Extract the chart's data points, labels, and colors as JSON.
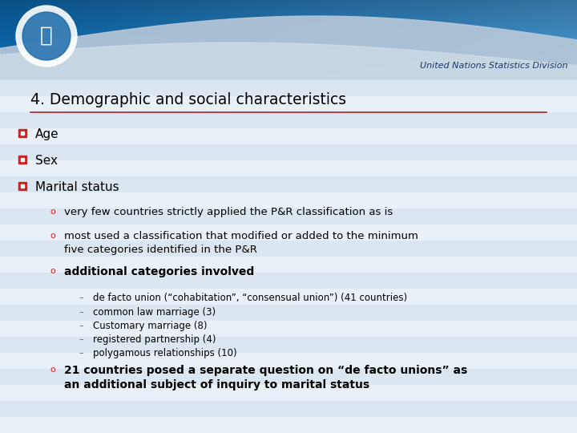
{
  "title": "4. Demographic and social characteristics",
  "header_text": "United Nations Statistics Division",
  "content_bg": "#dce6f0",
  "white_bg": "#ffffff",
  "title_color": "#000000",
  "red_color": "#cc2222",
  "sub_bullet_color": "#cc2222",
  "dash_color": "#666666",
  "text_color": "#000000",
  "level1_items": [
    "Age",
    "Sex",
    "Marital status"
  ],
  "level2_items": [
    "very few countries strictly applied the P&R classification as is",
    "most used a classification that modified or added to the minimum\nfive categories identified in the P&R",
    "additional categories involved"
  ],
  "level2_bold": [
    false,
    false,
    true
  ],
  "level3_items": [
    "de facto union (“cohabitation”, “consensual union”) (41 countries)",
    "common law marriage (3)",
    "Customary marriage (8)",
    "registered partnership (4)",
    "polygamous relationships (10)"
  ],
  "level2_last": "21 countries posed a separate question on “de facto unions” as\nan additional subject of inquiry to marital status",
  "separator_color": "#aa2222",
  "stripe_light": "#dce6f0",
  "stripe_white": "#eaf0f7",
  "header_bg_top": "#2288cc",
  "header_bg_bot": "#66aadd",
  "wave_color": "#c0ccd8",
  "header_text_color": "#1a3a6a"
}
